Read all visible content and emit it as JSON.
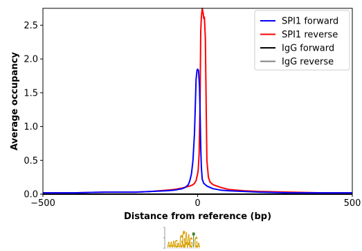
{
  "chart_data": {
    "type": "line",
    "xlabel": "Distance from reference (bp)",
    "ylabel": "Average occupancy",
    "xlim": [
      -500,
      500
    ],
    "ylim": [
      0,
      2.75
    ],
    "x_ticks": [
      "−500",
      "0",
      "500"
    ],
    "y_ticks": [
      "0.0",
      "0.5",
      "1.0",
      "1.5",
      "2.0",
      "2.5"
    ],
    "legend_position": "top-right",
    "series": [
      {
        "name": "SPI1 forward",
        "color": "#0000ff",
        "x": [
          -500,
          -400,
          -300,
          -200,
          -150,
          -100,
          -75,
          -50,
          -40,
          -30,
          -25,
          -20,
          -15,
          -10,
          -5,
          -2,
          0,
          3,
          6,
          8,
          10,
          12,
          15,
          20,
          25,
          30,
          40,
          50,
          75,
          100,
          150,
          200,
          300,
          400,
          500
        ],
        "y": [
          0.02,
          0.02,
          0.03,
          0.03,
          0.04,
          0.05,
          0.06,
          0.08,
          0.1,
          0.14,
          0.2,
          0.3,
          0.5,
          0.9,
          1.7,
          1.83,
          1.85,
          1.83,
          1.6,
          1.2,
          0.7,
          0.4,
          0.22,
          0.16,
          0.14,
          0.12,
          0.1,
          0.08,
          0.06,
          0.05,
          0.04,
          0.03,
          0.02,
          0.02,
          0.02
        ]
      },
      {
        "name": "SPI1 reverse",
        "color": "#ff0000",
        "x": [
          -500,
          -400,
          -300,
          -200,
          -150,
          -100,
          -75,
          -50,
          -25,
          -15,
          -10,
          -5,
          0,
          2,
          5,
          8,
          10,
          12,
          15,
          18,
          20,
          22,
          25,
          28,
          30,
          35,
          40,
          50,
          75,
          100,
          150,
          200,
          300,
          400,
          500
        ],
        "y": [
          0.02,
          0.02,
          0.03,
          0.03,
          0.04,
          0.06,
          0.07,
          0.09,
          0.12,
          0.14,
          0.16,
          0.2,
          0.3,
          0.36,
          0.6,
          1.4,
          2.4,
          2.62,
          2.75,
          2.68,
          2.6,
          2.62,
          2.3,
          1.2,
          0.5,
          0.25,
          0.18,
          0.14,
          0.1,
          0.07,
          0.05,
          0.04,
          0.03,
          0.02,
          0.02
        ]
      },
      {
        "name": "IgG forward",
        "color": "#000000",
        "x": [
          -500,
          500
        ],
        "y": [
          0.0,
          0.0
        ]
      },
      {
        "name": "IgG reverse",
        "color": "#808080",
        "x": [
          -500,
          500
        ],
        "y": [
          0.0,
          0.0
        ]
      }
    ]
  },
  "motif": {
    "letters": [
      {
        "char": "A",
        "color": "#d8a000",
        "height": 0.35
      },
      {
        "char": "A",
        "color": "#d8a000",
        "height": 0.35
      },
      {
        "char": "A",
        "color": "#d8a000",
        "height": 0.4
      },
      {
        "char": "G",
        "color": "#d8a000",
        "height": 0.45
      },
      {
        "char": "A",
        "color": "#d8a000",
        "height": 0.3
      },
      {
        "char": "G",
        "color": "#d8a000",
        "height": 0.75
      },
      {
        "char": "G",
        "color": "#d8a000",
        "height": 1.0
      },
      {
        "char": "A",
        "color": "#d8a000",
        "height": 0.95
      },
      {
        "char": "A",
        "color": "#d8a000",
        "height": 0.8
      },
      {
        "char": "G",
        "color": "#d8a000",
        "height": 0.6
      },
      {
        "char": "T",
        "color": "#3a7d2a",
        "height": 0.9
      },
      {
        "char": "G",
        "color": "#d8a000",
        "height": 0.65
      },
      {
        "char": "A",
        "color": "#d8a000",
        "height": 0.3
      }
    ]
  }
}
